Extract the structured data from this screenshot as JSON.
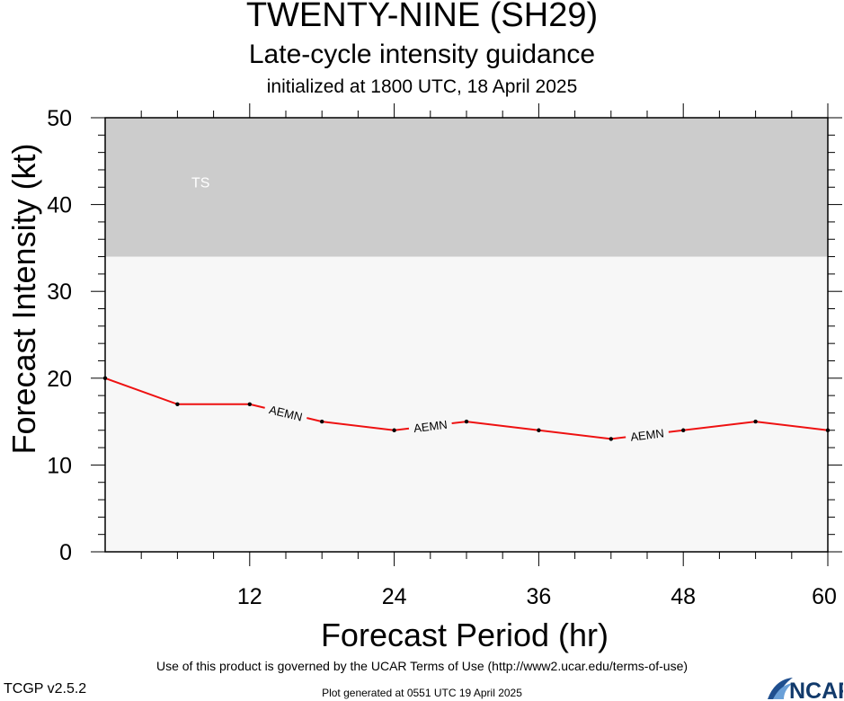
{
  "header": {
    "title": "TWENTY-NINE (SH29)",
    "subtitle": "Late-cycle intensity guidance",
    "init_line": "initialized at 1800 UTC, 18 April 2025"
  },
  "footer": {
    "terms": "Use of this product is governed by the UCAR Terms of Use (http://www2.ucar.edu/terms-of-use)",
    "version": "TCGP v2.5.2",
    "generated": "Plot generated at 0551 UTC   19 April 2025",
    "logo_text": "NCAR"
  },
  "chart_data": {
    "type": "line",
    "xlabel": "Forecast Period (hr)",
    "ylabel": "Forecast Intensity (kt)",
    "xlim": [
      0,
      60
    ],
    "ylim": [
      0,
      50
    ],
    "xticks": [
      12,
      24,
      36,
      48,
      60
    ],
    "yticks": [
      0,
      10,
      20,
      30,
      40,
      50
    ],
    "bands": [
      {
        "label": "TS",
        "from": 34,
        "to": 50,
        "color": "#cccccc"
      }
    ],
    "background_color": "#f7f7f7",
    "series": [
      {
        "name": "AEMN",
        "color": "#ee1111",
        "x": [
          0,
          6,
          12,
          18,
          24,
          30,
          36,
          42,
          48,
          54,
          60
        ],
        "y": [
          20,
          17,
          17,
          15,
          14,
          15,
          14,
          13,
          14,
          15,
          14
        ],
        "label_at_x": [
          15,
          27,
          45
        ]
      }
    ]
  }
}
